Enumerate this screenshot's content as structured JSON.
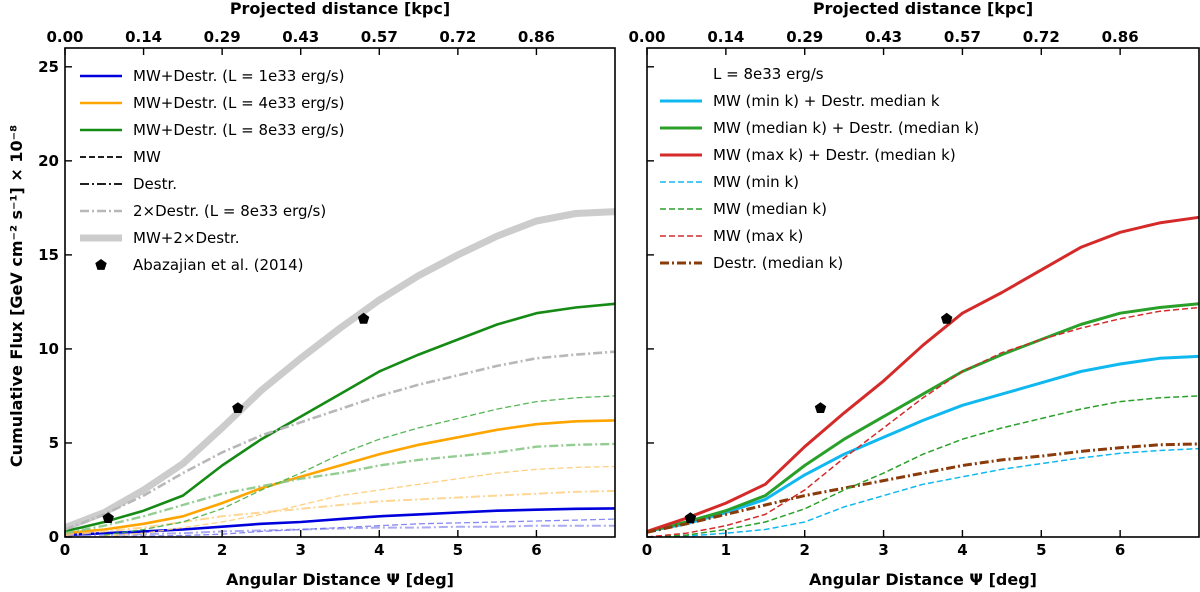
{
  "figure": {
    "top_axis_label": "Projected distance [kpc]",
    "x_axis_label": "Angular Distance Ψ [deg]",
    "y_axis_label": "Cumulative Flux [GeV cm⁻² s⁻¹] × 10⁻⁸"
  },
  "chart_data": [
    {
      "type": "line",
      "xlabel": "Angular Distance Ψ [deg]",
      "ylabel": "Cumulative Flux [GeV cm⁻² s⁻¹] × 10⁻⁸",
      "top_xlabel": "Projected distance [kpc]",
      "xlim": [
        0,
        7
      ],
      "ylim": [
        0,
        26
      ],
      "xticks": [
        "0",
        "1",
        "2",
        "3",
        "4",
        "5",
        "6"
      ],
      "yticks": [
        "0",
        "5",
        "10",
        "15",
        "20",
        "25"
      ],
      "top_ticks": [
        "0.00",
        "0.14",
        "0.29",
        "0.43",
        "0.57",
        "0.72",
        "0.86"
      ],
      "legend_location": "top-left",
      "series": [
        {
          "name": "MW+Destr. (L = 1e33 erg/s)",
          "legend": "MW+Destr. (L = 1e33 erg/s)",
          "color": "#0000dd",
          "dash": "solid",
          "width": 2.6,
          "opacity": 1,
          "x": [
            0,
            0.5,
            1,
            1.5,
            2,
            2.5,
            3,
            3.5,
            4,
            4.5,
            5,
            5.5,
            6,
            6.5,
            7
          ],
          "y": [
            0.1,
            0.2,
            0.3,
            0.4,
            0.55,
            0.7,
            0.8,
            0.95,
            1.1,
            1.2,
            1.3,
            1.4,
            1.45,
            1.5,
            1.52
          ]
        },
        {
          "name": "MW+Destr. (L = 4e33 erg/s)",
          "legend": "MW+Destr. (L = 4e33 erg/s)",
          "color": "#ffa500",
          "dash": "solid",
          "width": 2.6,
          "opacity": 1,
          "x": [
            0,
            0.5,
            1,
            1.5,
            2,
            2.5,
            3,
            3.5,
            4,
            4.5,
            5,
            5.5,
            6,
            6.5,
            7
          ],
          "y": [
            0.2,
            0.4,
            0.7,
            1.1,
            1.8,
            2.6,
            3.2,
            3.8,
            4.4,
            4.9,
            5.3,
            5.7,
            6.0,
            6.15,
            6.2
          ]
        },
        {
          "name": "MW+Destr. (L = 8e33 erg/s)",
          "legend": "MW+Destr. (L = 8e33 erg/s)",
          "color": "#158a15",
          "dash": "solid",
          "width": 2.6,
          "opacity": 1,
          "x": [
            0,
            0.5,
            1,
            1.5,
            2,
            2.5,
            3,
            3.5,
            4,
            4.5,
            5,
            5.5,
            6,
            6.5,
            7
          ],
          "y": [
            0.3,
            0.8,
            1.4,
            2.2,
            3.8,
            5.2,
            6.4,
            7.6,
            8.8,
            9.7,
            10.5,
            11.3,
            11.9,
            12.2,
            12.4
          ]
        },
        {
          "name": "MW",
          "legend": "MW",
          "color": "#000000",
          "dash": "dash",
          "width": 1.8,
          "opacity": 1,
          "legend_only": true
        },
        {
          "name": "Destr.",
          "legend": "Destr.",
          "color": "#000000",
          "dash": "dashdot",
          "width": 1.8,
          "opacity": 1,
          "legend_only": true
        },
        {
          "name": "2×Destr. (L = 8e33 erg/s)",
          "legend": "2×Destr. (L = 8e33 erg/s)",
          "color": "#b8b8b8",
          "dash": "dashdot",
          "width": 2.6,
          "opacity": 1,
          "x": [
            0,
            0.5,
            1,
            1.5,
            2,
            2.5,
            3,
            3.5,
            4,
            4.5,
            5,
            5.5,
            6,
            6.5,
            7
          ],
          "y": [
            0.4,
            1.2,
            2.2,
            3.4,
            4.5,
            5.4,
            6.1,
            6.8,
            7.5,
            8.1,
            8.6,
            9.1,
            9.5,
            9.7,
            9.85
          ]
        },
        {
          "name": "MW+2×Destr.",
          "legend": "MW+2×Destr.",
          "color": "#cccccc",
          "dash": "solid",
          "width": 7,
          "opacity": 1,
          "x": [
            0,
            0.5,
            1,
            1.5,
            2,
            2.5,
            3,
            3.5,
            4,
            4.5,
            5,
            5.5,
            6,
            6.5,
            7
          ],
          "y": [
            0.5,
            1.3,
            2.5,
            3.9,
            5.8,
            7.8,
            9.5,
            11.1,
            12.6,
            13.9,
            15.0,
            16.0,
            16.8,
            17.2,
            17.3
          ]
        },
        {
          "name": "MW (1e33)",
          "color": "#6a6aee",
          "dash": "dash",
          "width": 1.3,
          "opacity": 0.8,
          "x": [
            0.5,
            1,
            1.5,
            2,
            2.5,
            3,
            3.5,
            4,
            4.5,
            5,
            5.5,
            6,
            6.5,
            7
          ],
          "y": [
            0.02,
            0.05,
            0.08,
            0.15,
            0.3,
            0.4,
            0.5,
            0.6,
            0.7,
            0.75,
            0.8,
            0.85,
            0.9,
            0.95
          ]
        },
        {
          "name": "Destr. (1e33)",
          "color": "#8888ee",
          "dash": "dashdot",
          "width": 2,
          "opacity": 0.7,
          "x": [
            0,
            0.5,
            1,
            1.5,
            2,
            2.5,
            3,
            3.5,
            4,
            4.5,
            5,
            5.5,
            6,
            6.5,
            7
          ],
          "y": [
            0.05,
            0.1,
            0.15,
            0.2,
            0.3,
            0.35,
            0.4,
            0.45,
            0.5,
            0.5,
            0.55,
            0.55,
            0.6,
            0.6,
            0.6
          ]
        },
        {
          "name": "MW (4e33)",
          "color": "#ffc86a",
          "dash": "dash",
          "width": 1.3,
          "opacity": 0.85,
          "x": [
            0.5,
            1,
            1.5,
            2,
            2.5,
            3,
            3.5,
            4,
            4.5,
            5,
            5.5,
            6,
            6.5,
            7
          ],
          "y": [
            0.05,
            0.2,
            0.5,
            0.8,
            1.2,
            1.7,
            2.2,
            2.5,
            2.8,
            3.1,
            3.4,
            3.6,
            3.7,
            3.75
          ]
        },
        {
          "name": "Destr. (4e33)",
          "color": "#ffcf80",
          "dash": "dashdot",
          "width": 2,
          "opacity": 0.85,
          "x": [
            0,
            0.5,
            1,
            1.5,
            2,
            2.5,
            3,
            3.5,
            4,
            4.5,
            5,
            5.5,
            6,
            6.5,
            7
          ],
          "y": [
            0.1,
            0.3,
            0.5,
            0.8,
            1.1,
            1.3,
            1.5,
            1.7,
            1.9,
            2.0,
            2.1,
            2.2,
            2.3,
            2.4,
            2.45
          ]
        },
        {
          "name": "MW (8e33)",
          "color": "#3aaa3a",
          "dash": "dash",
          "width": 1.3,
          "opacity": 0.85,
          "x": [
            0.5,
            1,
            1.5,
            2,
            2.5,
            3,
            3.5,
            4,
            4.5,
            5,
            5.5,
            6,
            6.5,
            7
          ],
          "y": [
            0.1,
            0.4,
            0.8,
            1.5,
            2.5,
            3.4,
            4.4,
            5.2,
            5.8,
            6.3,
            6.8,
            7.2,
            7.4,
            7.5
          ]
        },
        {
          "name": "Destr. (8e33)",
          "color": "#88c888",
          "dash": "dashdot",
          "width": 2.4,
          "opacity": 0.9,
          "x": [
            0,
            0.5,
            1,
            1.5,
            2,
            2.5,
            3,
            3.5,
            4,
            4.5,
            5,
            5.5,
            6,
            6.5,
            7
          ],
          "y": [
            0.2,
            0.6,
            1.1,
            1.7,
            2.3,
            2.7,
            3.1,
            3.4,
            3.8,
            4.1,
            4.3,
            4.5,
            4.8,
            4.9,
            4.95
          ]
        }
      ],
      "points": {
        "name": "Abazajian et al. (2014)",
        "legend": "Abazajian et al. (2014)",
        "color": "#000000",
        "x": [
          0.55,
          2.2,
          3.8
        ],
        "y": [
          1.0,
          6.85,
          11.6
        ]
      }
    },
    {
      "type": "line",
      "xlabel": "Angular Distance Ψ [deg]",
      "top_xlabel": "Projected distance [kpc]",
      "xlim": [
        0,
        7
      ],
      "ylim": [
        0,
        26
      ],
      "xticks": [
        "0",
        "1",
        "2",
        "3",
        "4",
        "5",
        "6"
      ],
      "top_ticks": [
        "0.00",
        "0.14",
        "0.29",
        "0.43",
        "0.57",
        "0.72",
        "0.86"
      ],
      "legend_location": "top-left",
      "legend_title": "L = 8e33 erg/s",
      "series": [
        {
          "name": "MW (min k) + Destr. median k",
          "legend": "MW (min k) + Destr. median k",
          "color": "#10b8f0",
          "dash": "solid",
          "width": 3,
          "opacity": 1,
          "x": [
            0,
            0.5,
            1,
            1.5,
            2,
            2.5,
            3,
            3.5,
            4,
            4.5,
            5,
            5.5,
            6,
            6.5,
            7
          ],
          "y": [
            0.3,
            0.7,
            1.3,
            2.0,
            3.3,
            4.4,
            5.3,
            6.2,
            7.0,
            7.6,
            8.2,
            8.8,
            9.2,
            9.5,
            9.6
          ]
        },
        {
          "name": "MW (median k) + Destr. (median k)",
          "legend": "MW (median k) + Destr. (median k)",
          "color": "#2aa02a",
          "dash": "solid",
          "width": 3,
          "opacity": 1,
          "x": [
            0,
            0.5,
            1,
            1.5,
            2,
            2.5,
            3,
            3.5,
            4,
            4.5,
            5,
            5.5,
            6,
            6.5,
            7
          ],
          "y": [
            0.3,
            0.8,
            1.4,
            2.2,
            3.8,
            5.2,
            6.4,
            7.6,
            8.8,
            9.7,
            10.5,
            11.3,
            11.9,
            12.2,
            12.4
          ]
        },
        {
          "name": "MW (max k) + Destr. (median k)",
          "legend": "MW (max k) + Destr. (median k)",
          "color": "#d42a2a",
          "dash": "solid",
          "width": 3,
          "opacity": 1,
          "x": [
            0,
            0.5,
            1,
            1.5,
            2,
            2.5,
            3,
            3.5,
            4,
            4.5,
            5,
            5.5,
            6,
            6.5,
            7
          ],
          "y": [
            0.3,
            1.0,
            1.8,
            2.8,
            4.8,
            6.6,
            8.3,
            10.2,
            11.9,
            13.0,
            14.2,
            15.4,
            16.2,
            16.7,
            17.0
          ]
        },
        {
          "name": "MW (min k)",
          "legend": "MW (min k)",
          "color": "#10b8f0",
          "dash": "dash",
          "width": 1.5,
          "opacity": 1,
          "x": [
            0,
            0.5,
            1,
            1.5,
            2,
            2.5,
            3,
            3.5,
            4,
            4.5,
            5,
            5.5,
            6,
            6.5,
            7
          ],
          "y": [
            0.0,
            0.05,
            0.2,
            0.4,
            0.8,
            1.6,
            2.2,
            2.8,
            3.2,
            3.6,
            3.9,
            4.2,
            4.45,
            4.6,
            4.7
          ]
        },
        {
          "name": "MW (median k)",
          "legend": "MW (median k)",
          "color": "#2aa02a",
          "dash": "dash",
          "width": 1.5,
          "opacity": 1,
          "x": [
            0,
            0.5,
            1,
            1.5,
            2,
            2.5,
            3,
            3.5,
            4,
            4.5,
            5,
            5.5,
            6,
            6.5,
            7
          ],
          "y": [
            0.0,
            0.1,
            0.4,
            0.8,
            1.5,
            2.5,
            3.4,
            4.4,
            5.2,
            5.8,
            6.3,
            6.8,
            7.2,
            7.4,
            7.5
          ]
        },
        {
          "name": "MW (max k)",
          "legend": "MW (max k)",
          "color": "#d42a2a",
          "dash": "dash",
          "width": 1.5,
          "opacity": 1,
          "x": [
            0,
            0.5,
            1,
            1.5,
            2,
            2.5,
            3,
            3.5,
            4,
            4.5,
            5,
            5.5,
            6,
            6.5,
            7
          ],
          "y": [
            0.0,
            0.2,
            0.6,
            1.2,
            2.5,
            4.2,
            5.8,
            7.4,
            8.8,
            9.8,
            10.5,
            11.1,
            11.6,
            12.0,
            12.2
          ]
        },
        {
          "name": "Destr. (median k)",
          "legend": "Destr. (median k)",
          "color": "#8b3a0a",
          "dash": "dashdot",
          "width": 3,
          "opacity": 1,
          "x": [
            0,
            0.5,
            1,
            1.5,
            2,
            2.5,
            3,
            3.5,
            4,
            4.5,
            5,
            5.5,
            6,
            6.5,
            7
          ],
          "y": [
            0.25,
            0.7,
            1.2,
            1.7,
            2.2,
            2.6,
            3.0,
            3.4,
            3.8,
            4.1,
            4.3,
            4.55,
            4.75,
            4.9,
            4.95
          ]
        }
      ],
      "points": {
        "name": "Abazajian et al. (2014)",
        "color": "#000000",
        "x": [
          0.55,
          2.2,
          3.8
        ],
        "y": [
          1.0,
          6.85,
          11.6
        ]
      }
    }
  ]
}
